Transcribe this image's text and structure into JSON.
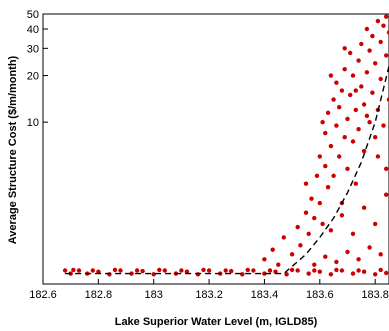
{
  "chart_data": {
    "type": "scatter",
    "title": "",
    "xlabel": "Lake Superior Water Level (m, IGLD85)",
    "ylabel": "Average Structure Cost ($/m/month)",
    "xlim": [
      182.6,
      183.85
    ],
    "ylim": [
      0.9,
      50
    ],
    "yscale": "log",
    "x_ticks": [
      182.6,
      182.8,
      183,
      183.2,
      183.4,
      183.6,
      183.8
    ],
    "x_tick_labels": [
      "182.6",
      "182.8",
      "183",
      "183.2",
      "183.4",
      "183.6",
      "183.8"
    ],
    "y_ticks": [
      10,
      20,
      30,
      40,
      50
    ],
    "y_tick_labels": [
      "10",
      "20",
      "30",
      "40",
      "50"
    ],
    "grid": false,
    "legend": "none",
    "colors": {
      "points": "#cc0000",
      "trend": "#000000"
    },
    "trend_line": {
      "style": "dashed",
      "x": [
        182.68,
        183.47,
        183.55,
        183.6,
        183.65,
        183.7,
        183.75,
        183.8,
        183.85
      ],
      "y": [
        1.05,
        1.05,
        1.4,
        1.8,
        2.4,
        3.5,
        5.5,
        10,
        23
      ]
    },
    "series": [
      {
        "points": [
          [
            182.68,
            1.1
          ],
          [
            182.7,
            1.05
          ],
          [
            182.73,
            1.1
          ],
          [
            182.76,
            1.05
          ],
          [
            182.8,
            1.08
          ],
          [
            182.84,
            1.04
          ],
          [
            182.88,
            1.1
          ],
          [
            182.92,
            1.05
          ],
          [
            182.96,
            1.09
          ],
          [
            183.0,
            1.04
          ],
          [
            183.04,
            1.1
          ],
          [
            183.08,
            1.05
          ],
          [
            183.12,
            1.08
          ],
          [
            183.16,
            1.04
          ],
          [
            183.2,
            1.1
          ],
          [
            183.24,
            1.05
          ],
          [
            183.28,
            1.09
          ],
          [
            183.32,
            1.04
          ],
          [
            183.36,
            1.1
          ],
          [
            183.4,
            1.05
          ],
          [
            183.44,
            1.08
          ],
          [
            183.48,
            1.04
          ],
          [
            183.52,
            1.1
          ],
          [
            183.56,
            1.05
          ],
          [
            183.6,
            1.08
          ],
          [
            183.64,
            1.04
          ],
          [
            183.68,
            1.1
          ],
          [
            183.72,
            1.05
          ],
          [
            183.76,
            1.08
          ],
          [
            183.8,
            1.04
          ],
          [
            183.84,
            1.06
          ],
          [
            182.71,
            1.11
          ],
          [
            182.78,
            1.1
          ],
          [
            182.86,
            1.11
          ],
          [
            182.94,
            1.1
          ],
          [
            183.02,
            1.11
          ],
          [
            183.1,
            1.1
          ],
          [
            183.18,
            1.11
          ],
          [
            183.26,
            1.1
          ],
          [
            183.34,
            1.11
          ],
          [
            183.42,
            1.1
          ],
          [
            183.5,
            1.11
          ],
          [
            183.58,
            1.1
          ],
          [
            183.66,
            1.11
          ],
          [
            183.74,
            1.1
          ],
          [
            183.82,
            1.11
          ],
          [
            183.4,
            1.3
          ],
          [
            183.43,
            1.5
          ],
          [
            183.45,
            1.2
          ],
          [
            183.47,
            1.8
          ],
          [
            183.5,
            1.4
          ],
          [
            183.52,
            2.1
          ],
          [
            183.53,
            1.6
          ],
          [
            183.55,
            2.6
          ],
          [
            183.56,
            1.9
          ],
          [
            183.57,
            3.2
          ],
          [
            183.58,
            2.4
          ],
          [
            183.59,
            4.5
          ],
          [
            183.6,
            3.0
          ],
          [
            183.6,
            6.0
          ],
          [
            183.61,
            2.2
          ],
          [
            183.62,
            5.2
          ],
          [
            183.62,
            8.5
          ],
          [
            183.63,
            3.8
          ],
          [
            183.63,
            11.5
          ],
          [
            183.64,
            7.0
          ],
          [
            183.65,
            14.0
          ],
          [
            183.65,
            4.5
          ],
          [
            183.66,
            9.5
          ],
          [
            183.66,
            18.0
          ],
          [
            183.67,
            6.0
          ],
          [
            183.67,
            12.5
          ],
          [
            183.68,
            3.0
          ],
          [
            183.68,
            16.0
          ],
          [
            183.69,
            8.0
          ],
          [
            183.69,
            22.0
          ],
          [
            183.7,
            5.0
          ],
          [
            183.7,
            10.5
          ],
          [
            183.71,
            15.0
          ],
          [
            183.71,
            28.0
          ],
          [
            183.72,
            7.5
          ],
          [
            183.72,
            20.0
          ],
          [
            183.73,
            12.0
          ],
          [
            183.73,
            4.0
          ],
          [
            183.74,
            25.0
          ],
          [
            183.74,
            9.0
          ],
          [
            183.75,
            17.0
          ],
          [
            183.75,
            32.0
          ],
          [
            183.76,
            6.5
          ],
          [
            183.76,
            13.0
          ],
          [
            183.77,
            21.0
          ],
          [
            183.77,
            40.0
          ],
          [
            183.78,
            10.0
          ],
          [
            183.78,
            29.0
          ],
          [
            183.79,
            15.5
          ],
          [
            183.79,
            36.0
          ],
          [
            183.8,
            8.0
          ],
          [
            183.8,
            24.0
          ],
          [
            183.81,
            45.0
          ],
          [
            183.81,
            12.0
          ],
          [
            183.82,
            33.0
          ],
          [
            183.82,
            19.0
          ],
          [
            183.83,
            42.0
          ],
          [
            183.83,
            9.5
          ],
          [
            183.84,
            27.0
          ],
          [
            183.84,
            48.0
          ],
          [
            183.85,
            14.0
          ],
          [
            183.85,
            38.0
          ],
          [
            183.58,
            1.2
          ],
          [
            183.62,
            1.35
          ],
          [
            183.66,
            1.25
          ],
          [
            183.7,
            1.45
          ],
          [
            183.74,
            1.3
          ],
          [
            183.78,
            1.55
          ],
          [
            183.82,
            1.4
          ],
          [
            183.64,
            2.0
          ],
          [
            183.68,
            2.5
          ],
          [
            183.72,
            1.9
          ],
          [
            183.76,
            2.8
          ],
          [
            183.8,
            2.2
          ],
          [
            183.84,
            3.4
          ],
          [
            183.55,
            4.0
          ],
          [
            183.61,
            10.0
          ],
          [
            183.64,
            20.0
          ],
          [
            183.69,
            30.0
          ],
          [
            183.73,
            16.0
          ],
          [
            183.77,
            11.0
          ],
          [
            183.81,
            6.0
          ],
          [
            183.84,
            5.0
          ]
        ]
      }
    ]
  }
}
